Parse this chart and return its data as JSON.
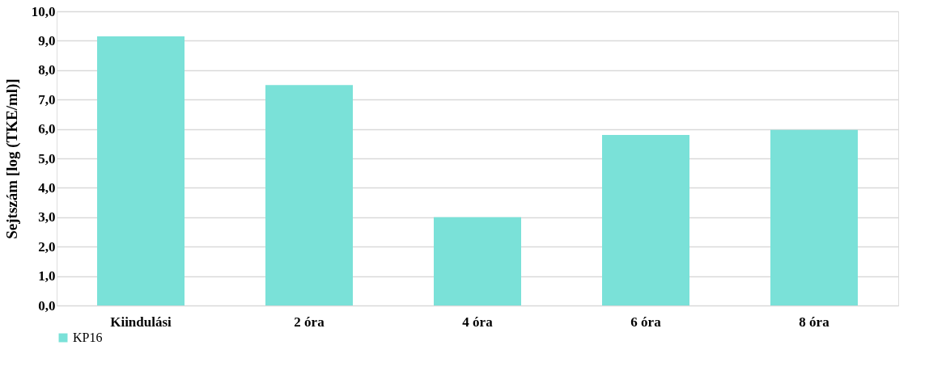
{
  "chart_data": {
    "type": "bar",
    "ylabel": "Sejtszám [log (TKE/ml)]",
    "categories": [
      "Kiindulási",
      "2 óra",
      "4 óra",
      "6 óra",
      "8 óra"
    ],
    "series": [
      {
        "name": "KP16",
        "color": "#7ae1d8",
        "values": [
          9.15,
          7.49,
          3.0,
          5.8,
          5.97
        ]
      }
    ],
    "ylim": [
      0,
      10
    ],
    "yticks": [
      {
        "value": 0,
        "label": "0,0"
      },
      {
        "value": 1,
        "label": "1,0"
      },
      {
        "value": 2,
        "label": "2,0"
      },
      {
        "value": 3,
        "label": "3,0"
      },
      {
        "value": 4,
        "label": "4,0"
      },
      {
        "value": 5,
        "label": "5,0"
      },
      {
        "value": 6,
        "label": "6,0"
      },
      {
        "value": 7,
        "label": "7,0"
      },
      {
        "value": 8,
        "label": "8,0"
      },
      {
        "value": 9,
        "label": "9,0"
      },
      {
        "value": 10,
        "label": "10,0"
      }
    ],
    "grid": "y",
    "legend": "bottom"
  }
}
